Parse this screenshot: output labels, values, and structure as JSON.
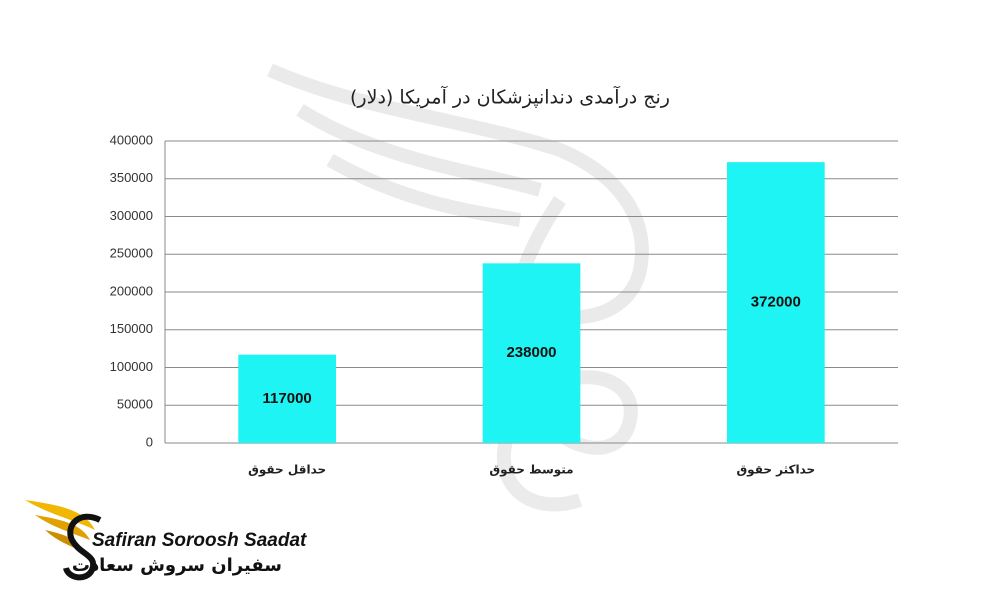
{
  "chart_data": {
    "type": "bar",
    "title": "رنج درآمدی دندانپزشکان در آمریکا (دلار)",
    "categories": [
      "حداقل حقوق",
      "متوسط حقوق",
      "حداکثر حقوق"
    ],
    "values": [
      117000,
      238000,
      372000
    ],
    "color": "#1ef4f4",
    "ylim": [
      0,
      400000
    ],
    "yticks": [
      0,
      50000,
      100000,
      150000,
      200000,
      250000,
      300000,
      350000,
      400000
    ],
    "grid": true
  },
  "logo": {
    "name_en": "Safiran Soroosh Saadat",
    "name_fa": "سفیران سروش سعادت"
  }
}
